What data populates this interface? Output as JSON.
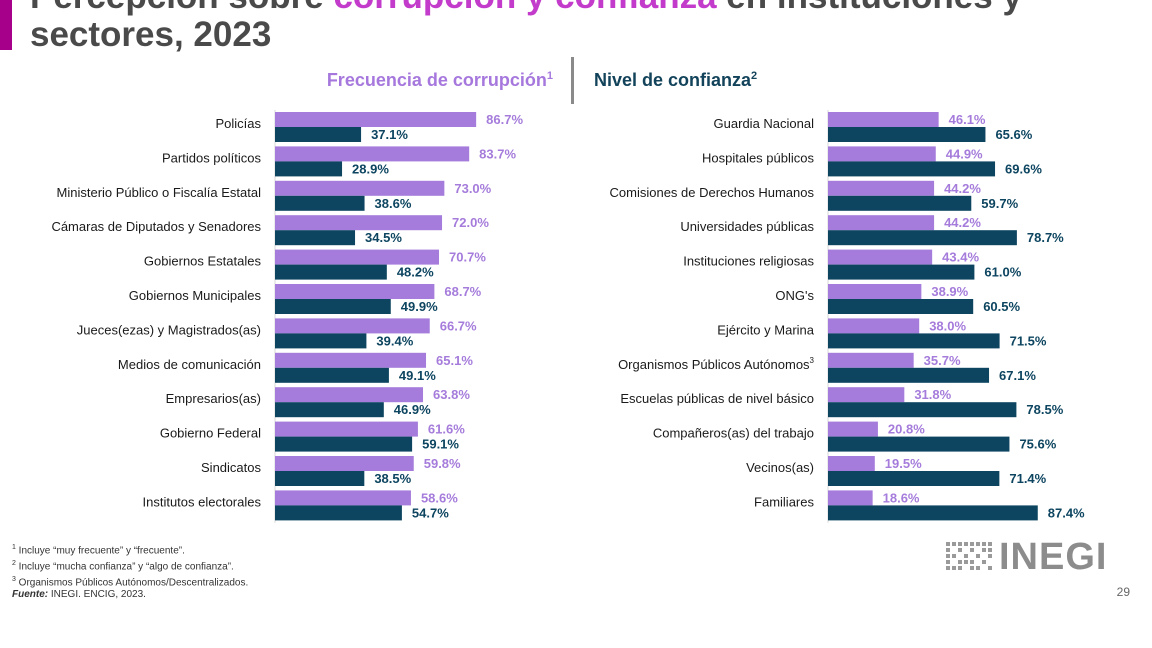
{
  "title": {
    "prefix": "Percepción sobre ",
    "highlight": "corrupción y confianza",
    "suffix": " en instituciones y",
    "line2": "sectores, 2023"
  },
  "colors": {
    "accent": "#a6008a",
    "series1": "#a57cdb",
    "series2": "#0d4560",
    "highlight": "#c33bcb"
  },
  "chart_data": [
    {
      "type": "bar",
      "orientation": "horizontal",
      "title": "Frecuencia de corrupción",
      "title_mark": "1",
      "categories": [
        "Policías",
        "Partidos políticos",
        "Ministerio Público o Fiscalía Estatal",
        "Cámaras de Diputados y Senadores",
        "Gobiernos Estatales",
        "Gobiernos Municipales",
        "Jueces(ezas) y Magistrados(as)",
        "Medios de comunicación",
        "Empresarios(as)",
        "Gobierno Federal",
        "Sindicatos",
        "Institutos electorales"
      ],
      "series": [
        {
          "name": "Frecuencia de corrupción",
          "values": [
            86.7,
            83.7,
            73.0,
            72.0,
            70.7,
            68.7,
            66.7,
            65.1,
            63.8,
            61.6,
            59.8,
            58.6
          ],
          "labels": [
            "86.7%",
            "83.7%",
            "73.0%",
            "72.0%",
            "70.7%",
            "68.7%",
            "66.7%",
            "65.1%",
            "63.8%",
            "61.6%",
            "59.8%",
            "58.6%"
          ]
        },
        {
          "name": "Nivel de confianza",
          "values": [
            37.1,
            28.9,
            38.6,
            34.5,
            48.2,
            49.9,
            39.4,
            49.1,
            46.9,
            59.1,
            38.5,
            54.7
          ],
          "labels": [
            "37.1%",
            "28.9%",
            "38.6%",
            "34.5%",
            "48.2%",
            "49.9%",
            "39.4%",
            "49.1%",
            "46.9%",
            "59.1%",
            "38.5%",
            "54.7%"
          ]
        }
      ],
      "xlim": [
        0,
        100
      ]
    },
    {
      "type": "bar",
      "orientation": "horizontal",
      "title": "Nivel de confianza",
      "title_mark": "2",
      "categories": [
        "Guardia Nacional",
        "Hospitales públicos",
        "Comisiones de Derechos Humanos",
        "Universidades públicas",
        "Instituciones religiosas",
        "ONG's",
        "Ejército y Marina",
        "Organismos Públicos Autónomos",
        "Escuelas públicas de nivel básico",
        "Compañeros(as) del trabajo",
        "Vecinos(as)",
        "Familiares"
      ],
      "category_marks": [
        "",
        "",
        "",
        "",
        "",
        "",
        "",
        "3",
        "",
        "",
        "",
        ""
      ],
      "series": [
        {
          "name": "Frecuencia de corrupción",
          "values": [
            46.1,
            44.9,
            44.2,
            44.2,
            43.4,
            38.9,
            38.0,
            35.7,
            31.8,
            20.8,
            19.5,
            18.6
          ],
          "labels": [
            "46.1%",
            "44.9%",
            "44.2%",
            "44.2%",
            "43.4%",
            "38.9%",
            "38.0%",
            "35.7%",
            "31.8%",
            "20.8%",
            "19.5%",
            "18.6%"
          ]
        },
        {
          "name": "Nivel de confianza",
          "values": [
            65.6,
            69.6,
            59.7,
            78.7,
            61.0,
            60.5,
            71.5,
            67.1,
            78.5,
            75.6,
            71.4,
            87.4
          ],
          "labels": [
            "65.6%",
            "69.6%",
            "59.7%",
            "78.7%",
            "61.0%",
            "60.5%",
            "71.5%",
            "67.1%",
            "78.5%",
            "75.6%",
            "71.4%",
            "87.4%"
          ]
        }
      ],
      "xlim": [
        0,
        100
      ]
    }
  ],
  "footnotes": [
    {
      "mark": "1",
      "text": " Incluye “muy frecuente” y “frecuente”."
    },
    {
      "mark": "2",
      "text": " Incluye “mucha confianza” y “algo de confianza”."
    },
    {
      "mark": "3",
      "text": " Organismos Públicos Autónomos/Descentralizados."
    }
  ],
  "source": {
    "label": "Fuente:",
    "text": " INEGI. ENCIG, 2023."
  },
  "logo": {
    "text": "INEGI",
    "icon": "inegi-dots-icon"
  },
  "page_number": "29"
}
